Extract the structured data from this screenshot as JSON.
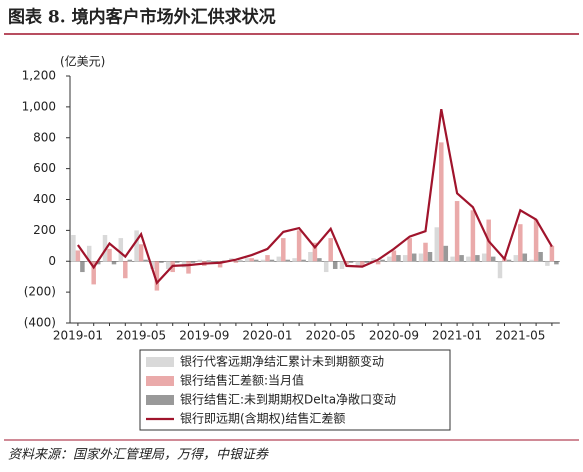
{
  "chart_data": {
    "type": "bar-line",
    "title": "图表 8. 境内客户市场外汇供求状况",
    "unit_label": "(亿美元)",
    "source": "资料来源：国家外汇管理局，万得，中银证券",
    "categories": [
      "2019-01",
      null,
      null,
      null,
      "2019-05",
      null,
      null,
      null,
      "2019-09",
      null,
      null,
      null,
      "2020-01",
      null,
      null,
      null,
      "2020-05",
      null,
      null,
      null,
      "2020-09",
      null,
      null,
      null,
      "2021-01",
      null,
      null,
      null,
      "2021-05",
      null,
      null
    ],
    "ylim": [
      -400,
      1200
    ],
    "yticks": [
      {
        "value": -400,
        "label": "(400)"
      },
      {
        "value": -200,
        "label": "(200)"
      },
      0,
      200,
      400,
      600,
      800,
      {
        "value": 1000,
        "label": "1,000"
      },
      {
        "value": 1200,
        "label": "1,200"
      }
    ],
    "series": [
      {
        "name": "银行代客远期净结汇累计未到期额变动",
        "type": "bar",
        "color": "#d9d9d9",
        "values": [
          170,
          100,
          170,
          150,
          200,
          -50,
          -50,
          -40,
          10,
          0,
          20,
          20,
          10,
          30,
          20,
          60,
          -70,
          -50,
          -30,
          20,
          30,
          40,
          50,
          220,
          30,
          30,
          50,
          -110,
          40,
          10,
          -30
        ]
      },
      {
        "name": "银行结售汇差额:当月值",
        "type": "bar",
        "color": "#eaaaaa",
        "values": [
          70,
          -150,
          80,
          -110,
          110,
          -190,
          -70,
          -80,
          -30,
          -40,
          -10,
          20,
          40,
          150,
          200,
          120,
          150,
          -20,
          -30,
          -20,
          70,
          150,
          120,
          770,
          390,
          330,
          270,
          20,
          240,
          270,
          100
        ]
      },
      {
        "name": "银行结售汇:未到期期权Delta净敞口变动",
        "type": "bar",
        "color": "#999999",
        "values": [
          -70,
          -20,
          -20,
          10,
          10,
          -10,
          -10,
          -10,
          5,
          5,
          5,
          10,
          10,
          10,
          10,
          20,
          -50,
          -10,
          -10,
          10,
          40,
          50,
          60,
          100,
          40,
          40,
          30,
          10,
          50,
          60,
          -20
        ]
      },
      {
        "name": "银行即远期(含期权)结售汇差额",
        "type": "line",
        "color": "#a0142c",
        "values": [
          105,
          -40,
          115,
          30,
          175,
          -140,
          -30,
          -25,
          -15,
          -10,
          10,
          40,
          80,
          190,
          215,
          90,
          210,
          -30,
          -35,
          10,
          80,
          160,
          195,
          985,
          440,
          350,
          130,
          15,
          330,
          270,
          95
        ]
      }
    ]
  }
}
